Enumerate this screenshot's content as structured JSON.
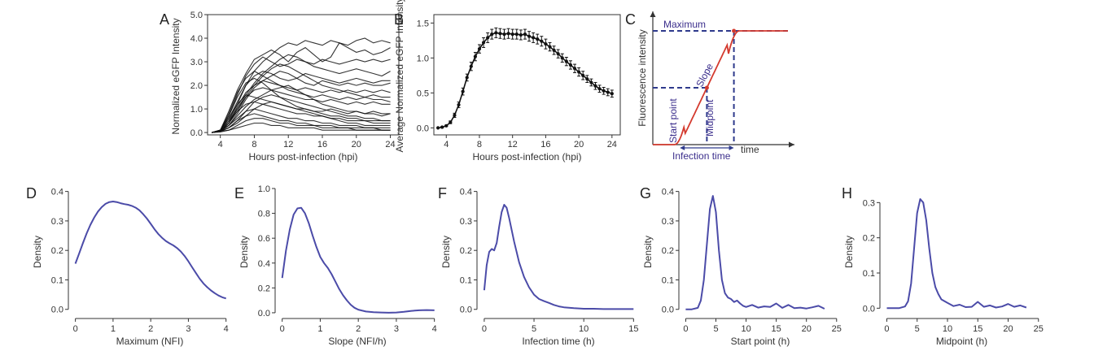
{
  "colors": {
    "traces": "#111111",
    "mean_line": "#111111",
    "density": "#4B4BA8",
    "dashed": "#2E3A8C",
    "sigmoid": "#D43A2E",
    "annotation_text": "#3B2E8C"
  },
  "chart_data": [
    {
      "panel": "A",
      "type": "line",
      "title": "",
      "xlabel": "Hours post-infection (hpi)",
      "ylabel": "Normalized eGFP Intensity",
      "xlim": [
        2.5,
        25
      ],
      "ylim": [
        -0.1,
        5.0
      ],
      "xticks": [
        "4",
        "8",
        "12",
        "16",
        "20",
        "24"
      ],
      "yticks": [
        "0.0",
        "1.0",
        "2.0",
        "3.0",
        "4.0",
        "5.0"
      ],
      "x": [
        3,
        4,
        5,
        6,
        7,
        8,
        9,
        10,
        11,
        12,
        13,
        14,
        15,
        16,
        17,
        18,
        19,
        20,
        21,
        22,
        23,
        24
      ],
      "series": [
        {
          "values": [
            0,
            0.1,
            0.9,
            1.8,
            2.5,
            3.1,
            3.3,
            3.5,
            3.3,
            3.0,
            3.4,
            3.6,
            3.3,
            3.0,
            3.2,
            3.8,
            3.6,
            3.4,
            3.5,
            3.3,
            3.4,
            3.6
          ]
        },
        {
          "values": [
            0,
            0.05,
            0.5,
            1.2,
            2.0,
            2.6,
            3.0,
            3.3,
            3.6,
            3.8,
            3.7,
            3.9,
            3.8,
            3.7,
            3.9,
            3.8,
            3.7,
            3.9,
            4.0,
            3.8,
            3.9,
            3.8
          ]
        },
        {
          "values": [
            0,
            0.1,
            0.7,
            1.6,
            2.4,
            2.9,
            3.2,
            3.0,
            2.8,
            2.9,
            3.1,
            3.0,
            2.9,
            3.1,
            3.0,
            2.9,
            3.0,
            3.1,
            3.0,
            3.1,
            3.0,
            3.1
          ]
        },
        {
          "values": [
            0,
            0.05,
            0.4,
            1.0,
            1.6,
            2.1,
            2.5,
            2.8,
            3.1,
            3.3,
            3.2,
            3.0,
            2.8,
            2.7,
            2.6,
            2.5,
            2.6,
            2.7,
            2.6,
            2.5,
            2.4,
            2.6
          ]
        },
        {
          "values": [
            0,
            0.1,
            0.6,
            1.3,
            2.0,
            2.4,
            2.6,
            2.5,
            2.3,
            2.2,
            2.3,
            2.5,
            2.4,
            2.3,
            2.2,
            2.1,
            2.2,
            2.3,
            2.2,
            2.1,
            2.2,
            2.2
          ]
        },
        {
          "values": [
            0,
            0.05,
            0.3,
            0.8,
            1.4,
            1.9,
            2.2,
            2.4,
            2.6,
            2.5,
            2.3,
            2.1,
            2.0,
            2.2,
            2.1,
            2.0,
            2.1,
            2.0,
            2.1,
            2.0,
            2.0,
            2.1
          ]
        },
        {
          "values": [
            0,
            0.1,
            0.8,
            1.7,
            2.3,
            2.6,
            2.4,
            2.2,
            2.0,
            1.9,
            1.8,
            1.9,
            1.8,
            1.7,
            1.8,
            1.7,
            1.8,
            1.7,
            1.8,
            1.7,
            1.8,
            1.7
          ]
        },
        {
          "values": [
            0,
            0.05,
            0.4,
            1.1,
            1.7,
            2.0,
            2.2,
            2.1,
            2.0,
            1.8,
            1.7,
            1.6,
            1.5,
            1.6,
            1.5,
            1.4,
            1.5,
            1.4,
            1.5,
            1.6,
            1.5,
            1.5
          ]
        },
        {
          "values": [
            0,
            0.1,
            0.5,
            1.0,
            1.5,
            1.8,
            1.9,
            1.8,
            1.7,
            1.6,
            1.5,
            1.4,
            1.4,
            1.3,
            1.4,
            1.3,
            1.2,
            1.3,
            1.2,
            1.3,
            1.2,
            1.2
          ]
        },
        {
          "values": [
            0,
            0.05,
            0.3,
            0.7,
            1.1,
            1.4,
            1.6,
            1.8,
            1.9,
            2.0,
            1.8,
            1.6,
            1.4,
            1.2,
            1.1,
            1.0,
            0.9,
            0.9,
            0.8,
            0.8,
            0.7,
            0.8
          ]
        },
        {
          "values": [
            0,
            0.1,
            0.6,
            1.2,
            1.6,
            1.5,
            1.4,
            1.3,
            1.2,
            1.1,
            1.0,
            1.0,
            0.9,
            0.9,
            1.0,
            0.9,
            0.8,
            0.9,
            0.8,
            0.9,
            0.8,
            0.8
          ]
        },
        {
          "values": [
            0,
            0.05,
            0.2,
            0.5,
            0.9,
            1.3,
            1.5,
            1.6,
            1.5,
            1.4,
            1.3,
            1.2,
            1.1,
            1.0,
            0.9,
            0.8,
            0.7,
            0.7,
            0.6,
            0.6,
            0.5,
            0.5
          ]
        },
        {
          "values": [
            0,
            0.1,
            0.4,
            0.9,
            1.2,
            1.3,
            1.2,
            1.1,
            1.0,
            0.9,
            0.8,
            0.8,
            0.7,
            0.7,
            0.6,
            0.6,
            0.5,
            0.5,
            0.5,
            0.4,
            0.4,
            0.4
          ]
        },
        {
          "values": [
            0,
            0.05,
            0.2,
            0.4,
            0.7,
            1.0,
            1.2,
            1.3,
            1.2,
            1.1,
            1.0,
            0.9,
            0.8,
            0.7,
            0.6,
            0.5,
            0.4,
            0.4,
            0.3,
            0.3,
            0.3,
            0.3
          ]
        },
        {
          "values": [
            0,
            0.1,
            0.3,
            0.6,
            0.9,
            1.0,
            0.9,
            0.8,
            0.7,
            0.6,
            0.6,
            0.5,
            0.5,
            0.4,
            0.4,
            0.3,
            0.3,
            0.3,
            0.2,
            0.2,
            0.2,
            0.2
          ]
        },
        {
          "values": [
            0,
            0.05,
            0.2,
            0.5,
            0.7,
            0.8,
            0.7,
            0.6,
            0.5,
            0.5,
            0.4,
            0.4,
            0.3,
            0.3,
            0.3,
            0.2,
            0.2,
            0.2,
            0.2,
            0.2,
            0.1,
            0.1
          ]
        },
        {
          "values": [
            0,
            0.05,
            0.1,
            0.3,
            0.5,
            0.6,
            0.6,
            0.5,
            0.4,
            0.4,
            0.3,
            0.3,
            0.3,
            0.2,
            0.2,
            0.2,
            0.2,
            0.1,
            0.1,
            0.1,
            0.1,
            0.1
          ]
        },
        {
          "values": [
            0,
            0.02,
            0.1,
            0.2,
            0.3,
            0.4,
            0.4,
            0.3,
            0.3,
            0.2,
            0.2,
            0.2,
            0.2,
            0.1,
            0.1,
            0.1,
            0.1,
            0.1,
            0.1,
            0.1,
            0.1,
            0.1
          ]
        },
        {
          "values": [
            0,
            0.1,
            0.7,
            1.5,
            2.1,
            2.3,
            2.1,
            1.8,
            1.5,
            1.3,
            1.1,
            1.0,
            0.9,
            0.8,
            0.7,
            0.7,
            0.6,
            0.6,
            0.5,
            0.5,
            0.5,
            0.5
          ]
        },
        {
          "values": [
            0,
            0.05,
            0.4,
            0.9,
            1.5,
            2.0,
            2.4,
            2.7,
            2.9,
            2.8,
            2.6,
            2.4,
            2.2,
            2.0,
            1.9,
            1.8,
            1.7,
            1.6,
            1.5,
            1.4,
            1.4,
            1.3
          ]
        }
      ]
    },
    {
      "panel": "B",
      "type": "line",
      "title": "",
      "xlabel": "Hours post-infection (hpi)",
      "ylabel": "Average Normalized eGFP Intensity",
      "xlim": [
        2.5,
        25
      ],
      "ylim": [
        -0.1,
        1.62
      ],
      "xticks": [
        "4",
        "8",
        "12",
        "16",
        "20",
        "24"
      ],
      "yticks": [
        "0.0",
        "0.5",
        "1.0",
        "1.5"
      ],
      "x": [
        3,
        3.5,
        4,
        4.5,
        5,
        5.5,
        6,
        6.5,
        7,
        7.5,
        8,
        8.5,
        9,
        9.5,
        10,
        10.5,
        11,
        11.5,
        12,
        12.5,
        13,
        13.5,
        14,
        14.5,
        15,
        15.5,
        16,
        16.5,
        17,
        17.5,
        18,
        18.5,
        19,
        19.5,
        20,
        20.5,
        21,
        21.5,
        22,
        22.5,
        23,
        23.5,
        24
      ],
      "y": [
        0.0,
        0.01,
        0.03,
        0.08,
        0.18,
        0.33,
        0.52,
        0.72,
        0.88,
        1.02,
        1.13,
        1.22,
        1.29,
        1.34,
        1.36,
        1.35,
        1.34,
        1.35,
        1.34,
        1.34,
        1.33,
        1.34,
        1.31,
        1.29,
        1.27,
        1.24,
        1.2,
        1.16,
        1.11,
        1.06,
        1.0,
        0.95,
        0.9,
        0.85,
        0.8,
        0.75,
        0.7,
        0.65,
        0.6,
        0.56,
        0.53,
        0.51,
        0.49
      ],
      "error": [
        0,
        0.01,
        0.01,
        0.02,
        0.03,
        0.04,
        0.05,
        0.05,
        0.06,
        0.06,
        0.06,
        0.07,
        0.07,
        0.07,
        0.07,
        0.07,
        0.07,
        0.07,
        0.07,
        0.07,
        0.07,
        0.07,
        0.07,
        0.07,
        0.07,
        0.07,
        0.07,
        0.06,
        0.06,
        0.06,
        0.06,
        0.06,
        0.06,
        0.06,
        0.06,
        0.06,
        0.05,
        0.05,
        0.05,
        0.05,
        0.05,
        0.05,
        0.05
      ]
    },
    {
      "panel": "C",
      "type": "line",
      "title": "",
      "xlabel": "time",
      "ylabel": "Fluorescence intensity",
      "annotations": [
        "Maximum",
        "Slope",
        "Start point",
        "Midpoint",
        "Infection time"
      ],
      "sigmoid": {
        "start": 0.2,
        "mid": 0.4,
        "end": 0.6,
        "max": 1.0
      }
    },
    {
      "panel": "D",
      "type": "line",
      "title": "",
      "xlabel": "Maximum (NFI)",
      "ylabel": "Density",
      "xlim": [
        -0.1,
        4.05
      ],
      "ylim": [
        -0.02,
        0.41
      ],
      "xticks": [
        0,
        1,
        2,
        3,
        4
      ],
      "yticks": [
        0.0,
        0.1,
        0.2,
        0.3,
        0.4
      ],
      "ytick_labels": [
        "0.0",
        "0.1",
        "0.2",
        "0.3",
        "0.4"
      ],
      "x": [
        0,
        0.1,
        0.2,
        0.3,
        0.4,
        0.5,
        0.6,
        0.7,
        0.8,
        0.9,
        1.0,
        1.1,
        1.2,
        1.3,
        1.4,
        1.5,
        1.6,
        1.7,
        1.8,
        1.9,
        2.0,
        2.1,
        2.2,
        2.3,
        2.4,
        2.5,
        2.6,
        2.7,
        2.8,
        2.9,
        3.0,
        3.1,
        3.2,
        3.3,
        3.4,
        3.5,
        3.6,
        3.7,
        3.8,
        3.9,
        4.0
      ],
      "y": [
        0.155,
        0.19,
        0.225,
        0.258,
        0.287,
        0.312,
        0.332,
        0.347,
        0.358,
        0.364,
        0.366,
        0.364,
        0.36,
        0.357,
        0.355,
        0.351,
        0.345,
        0.336,
        0.323,
        0.308,
        0.29,
        0.272,
        0.256,
        0.243,
        0.232,
        0.224,
        0.217,
        0.208,
        0.196,
        0.181,
        0.163,
        0.143,
        0.123,
        0.104,
        0.088,
        0.075,
        0.064,
        0.055,
        0.047,
        0.041,
        0.037
      ]
    },
    {
      "panel": "E",
      "type": "line",
      "title": "",
      "xlabel": "Slope (NFI/h)",
      "ylabel": "Density",
      "xlim": [
        -0.1,
        4.05
      ],
      "ylim": [
        -0.02,
        1.0
      ],
      "xticks": [
        0,
        1,
        2,
        3,
        4
      ],
      "yticks": [
        0.0,
        0.2,
        0.4,
        0.6,
        0.8,
        1.0
      ],
      "ytick_labels": [
        "0.0",
        "0.2",
        "0.4",
        "0.6",
        "0.8",
        "1.0"
      ],
      "x": [
        0,
        0.1,
        0.2,
        0.3,
        0.4,
        0.5,
        0.6,
        0.7,
        0.8,
        0.9,
        1.0,
        1.1,
        1.2,
        1.3,
        1.4,
        1.5,
        1.6,
        1.7,
        1.8,
        1.9,
        2.0,
        2.2,
        2.4,
        2.6,
        2.8,
        3.0,
        3.2,
        3.4,
        3.6,
        3.8,
        4.0
      ],
      "y": [
        0.28,
        0.5,
        0.67,
        0.79,
        0.84,
        0.845,
        0.8,
        0.72,
        0.62,
        0.53,
        0.45,
        0.4,
        0.36,
        0.31,
        0.25,
        0.19,
        0.14,
        0.1,
        0.065,
        0.04,
        0.025,
        0.01,
        0.005,
        0.002,
        0.0,
        0.002,
        0.008,
        0.015,
        0.02,
        0.022,
        0.02
      ]
    },
    {
      "panel": "F",
      "type": "line",
      "title": "",
      "xlabel": "Infection time (h)",
      "ylabel": "Density",
      "xlim": [
        -0.4,
        15.3
      ],
      "ylim": [
        -0.02,
        0.41
      ],
      "xticks": [
        0,
        5,
        10,
        15
      ],
      "yticks": [
        0.0,
        0.1,
        0.2,
        0.3,
        0.4
      ],
      "ytick_labels": [
        "0.0",
        "0.1",
        "0.2",
        "0.3",
        "0.4"
      ],
      "x": [
        0,
        0.25,
        0.5,
        0.75,
        1.0,
        1.25,
        1.5,
        1.75,
        2.0,
        2.25,
        2.5,
        3.0,
        3.5,
        4.0,
        4.5,
        5.0,
        5.5,
        6.0,
        6.5,
        7.0,
        7.5,
        8.0,
        9.0,
        10.0,
        11.0,
        12.0,
        13.0,
        14.0,
        15.0
      ],
      "y": [
        0.065,
        0.15,
        0.195,
        0.205,
        0.2,
        0.225,
        0.28,
        0.33,
        0.355,
        0.345,
        0.31,
        0.23,
        0.16,
        0.11,
        0.075,
        0.05,
        0.035,
        0.028,
        0.022,
        0.015,
        0.01,
        0.007,
        0.004,
        0.002,
        0.002,
        0.001,
        0.001,
        0.001,
        0.001
      ]
    },
    {
      "panel": "G",
      "type": "line",
      "title": "",
      "xlabel": "Start point (h)",
      "ylabel": "Density",
      "xlim": [
        -0.6,
        25.3
      ],
      "ylim": [
        -0.02,
        0.41
      ],
      "xticks": [
        0,
        5,
        10,
        15,
        20,
        25
      ],
      "yticks": [
        0.0,
        0.1,
        0.2,
        0.3,
        0.4
      ],
      "ytick_labels": [
        "0.0",
        "0.1",
        "0.2",
        "0.3",
        "0.4"
      ],
      "x": [
        0,
        1,
        2,
        2.5,
        3,
        3.5,
        4,
        4.5,
        5,
        5.5,
        6,
        6.5,
        7,
        7.5,
        8,
        8.5,
        9,
        9.5,
        10,
        11,
        12,
        13,
        14,
        15,
        16,
        17,
        18,
        19,
        20,
        21,
        22,
        23
      ],
      "y": [
        0.0,
        0.0,
        0.005,
        0.03,
        0.1,
        0.22,
        0.34,
        0.385,
        0.33,
        0.2,
        0.1,
        0.055,
        0.04,
        0.035,
        0.025,
        0.03,
        0.02,
        0.012,
        0.008,
        0.015,
        0.006,
        0.01,
        0.008,
        0.02,
        0.005,
        0.015,
        0.004,
        0.006,
        0.003,
        0.007,
        0.012,
        0.002
      ]
    },
    {
      "panel": "H",
      "type": "line",
      "title": "",
      "xlabel": "Midpoint (h)",
      "ylabel": "Density",
      "xlim": [
        -0.6,
        25.3
      ],
      "ylim": [
        -0.02,
        0.34
      ],
      "xticks": [
        0,
        5,
        10,
        15,
        20,
        25
      ],
      "yticks": [
        0.0,
        0.1,
        0.2,
        0.3
      ],
      "ytick_labels": [
        "0.0",
        "0.1",
        "0.2",
        "0.3"
      ],
      "x": [
        0,
        2,
        3,
        3.5,
        4,
        4.5,
        5,
        5.5,
        6,
        6.5,
        7,
        7.5,
        8,
        8.5,
        9,
        10,
        11,
        12,
        13,
        14,
        15,
        16,
        17,
        18,
        19,
        20,
        21,
        22,
        23
      ],
      "y": [
        0.0,
        0.0,
        0.005,
        0.02,
        0.07,
        0.17,
        0.27,
        0.31,
        0.3,
        0.25,
        0.17,
        0.1,
        0.06,
        0.04,
        0.025,
        0.015,
        0.006,
        0.01,
        0.003,
        0.004,
        0.018,
        0.004,
        0.008,
        0.002,
        0.005,
        0.012,
        0.004,
        0.008,
        0.002
      ]
    }
  ]
}
